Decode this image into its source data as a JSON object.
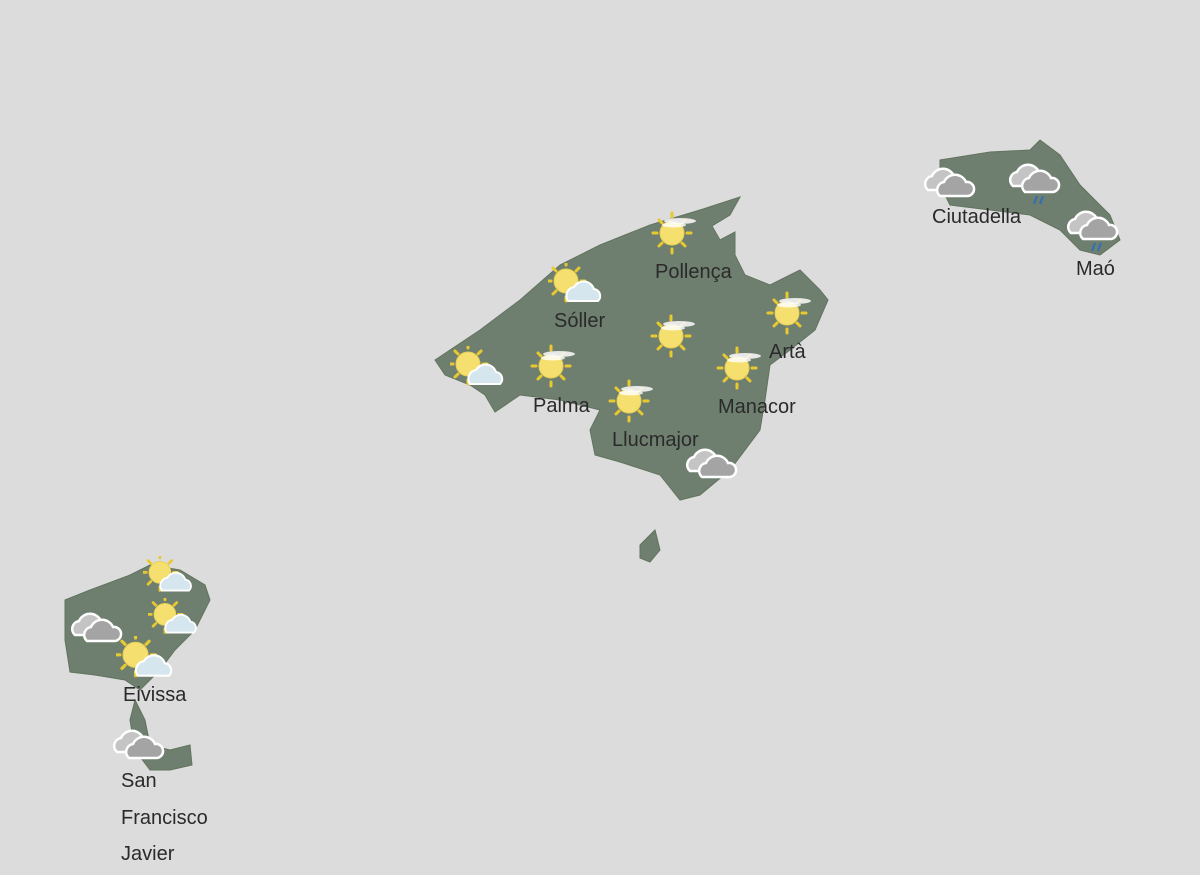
{
  "colors": {
    "background": "#dcdcdc",
    "land": "#6e7f6f",
    "sun": "#f5df6e",
    "sun_ray": "#e8c930",
    "cloud_light": "#d6e6ee",
    "cloud_dark": "#a0a0a0",
    "rain": "#2f6fb8"
  },
  "locations": [
    {
      "name": "Pollença",
      "icon": "sun-haze-icon"
    },
    {
      "name": "Sóller",
      "icon": "sun-cloud-icon"
    },
    {
      "name": "Palma",
      "icon": "sun-haze-icon"
    },
    {
      "name": "Llucmajor",
      "icon": "sun-haze-icon"
    },
    {
      "name": "Manacor",
      "icon": "sun-haze-icon"
    },
    {
      "name": "Artà",
      "icon": "sun-haze-icon"
    },
    {
      "name": "Ciutadella",
      "icon": "overcast-icon"
    },
    {
      "name": "Maó",
      "icon": "rain-icon"
    },
    {
      "name": "Eivissa",
      "icon": "sun-cloud-icon"
    },
    {
      "name": "San",
      "icon": "overcast-icon"
    },
    {
      "name": "Francisco"
    },
    {
      "name": "Javier"
    }
  ],
  "extra_icons": [
    "sun-cloud-icon",
    "sun-haze-icon",
    "overcast-icon",
    "rain-icon",
    "sun-cloud-icon",
    "sun-cloud-icon",
    "overcast-icon"
  ]
}
